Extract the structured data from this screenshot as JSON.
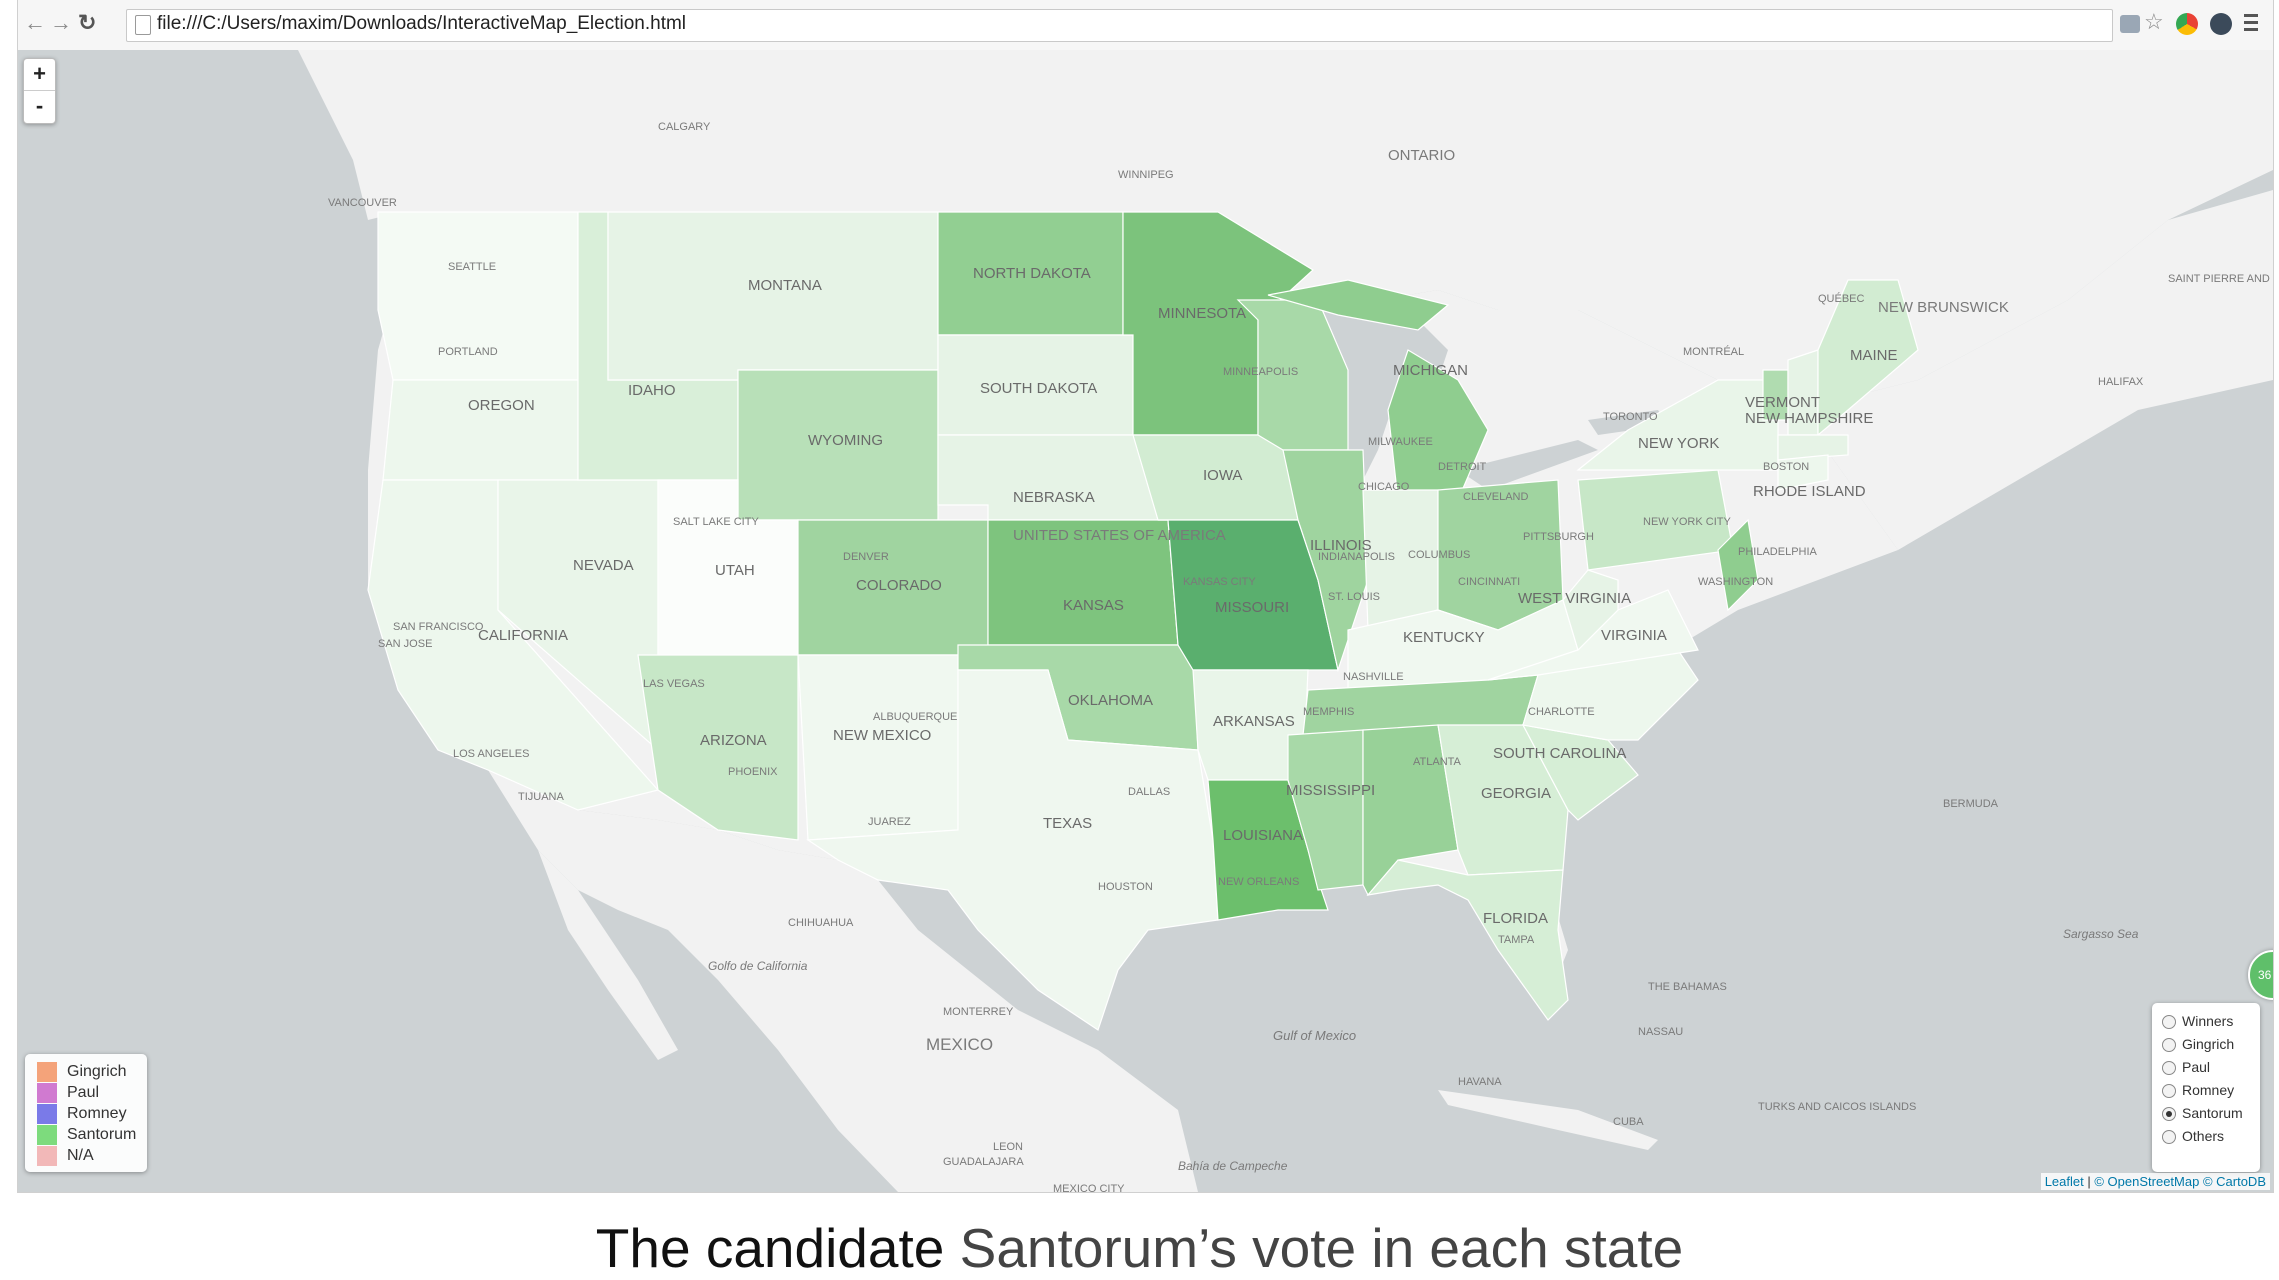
{
  "browser": {
    "url": "file:///C:/Users/maxim/Downloads/InteractiveMap_Election.html"
  },
  "map": {
    "zoom_in": "+",
    "zoom_out": "-",
    "place_labels": {
      "calgary": "CALGARY",
      "winnipeg": "WINNIPEG",
      "ontario": "ONTARIO",
      "vancouver": "VANCOUVER",
      "seattle": "SEATTLE",
      "portland": "PORTLAND",
      "quebec": "QUÉBEC",
      "new_brunswick": "NEW BRUNSWICK",
      "montreal": "MONTRÉAL",
      "halifax": "HALIFAX",
      "saint_pierre": "SAINT PIERRE AND MIQUELON",
      "toronto": "TORONTO",
      "minneapolis": "MINNEAPOLIS",
      "milwaukee": "MILWAUKEE",
      "chicago": "CHICAGO",
      "detroit": "DETROIT",
      "cleveland": "CLEVELAND",
      "pittsburgh": "PITTSBURGH",
      "columbus": "COLUMBUS",
      "cincinnati": "CINCINNATI",
      "indianapolis": "INDIANAPOLIS",
      "st_louis": "ST. LOUIS",
      "kansas_city": "KANSAS CITY",
      "denver": "DENVER",
      "salt_lake_city": "SALT LAKE CITY",
      "united_states": "UNITED STATES OF AMERICA",
      "san_francisco": "SAN FRANCISCO",
      "san_jose": "SAN JOSE",
      "los_angeles": "LOS ANGELES",
      "las_vegas": "LAS VEGAS",
      "phoenix": "PHOENIX",
      "tijuana": "TIJUANA",
      "albuquerque": "ALBUQUERQUE",
      "juarez": "JUAREZ",
      "dallas": "DALLAS",
      "houston": "HOUSTON",
      "new_orleans": "NEW ORLEANS",
      "memphis": "MEMPHIS",
      "nashville": "NASHVILLE",
      "atlanta": "ATLANTA",
      "charlotte": "CHARLOTTE",
      "washington": "WASHINGTON",
      "philadelphia": "PHILADELPHIA",
      "new_york_city": "NEW YORK CITY",
      "boston": "BOSTON",
      "tampa": "TAMPA",
      "chihuahua": "CHIHUAHUA",
      "monterrey": "MONTERREY",
      "mexico": "MEXICO",
      "leon": "LEON",
      "guadalajara": "GUADALAJARA",
      "mexico_city": "MEXICO CITY",
      "golfo_california": "Golfo de California",
      "gulf_mexico": "Gulf of Mexico",
      "bahia_campeche": "Bahía de Campeche",
      "havana": "HAVANA",
      "cuba": "CUBA",
      "nassau": "NASSAU",
      "the_bahamas": "THE BAHAMAS",
      "turks_caicos": "TURKS AND CAICOS ISLANDS",
      "bermuda": "BERMUDA",
      "sargasso": "Sargasso Sea"
    },
    "states": {
      "washington": "",
      "oregon": "OREGON",
      "california": "CALIFORNIA",
      "nevada": "NEVADA",
      "idaho": "IDAHO",
      "montana": "MONTANA",
      "wyoming": "WYOMING",
      "utah": "UTAH",
      "arizona": "ARIZONA",
      "colorado": "COLORADO",
      "new_mexico": "NEW MEXICO",
      "north_dakota": "NORTH DAKOTA",
      "south_dakota": "SOUTH DAKOTA",
      "nebraska": "NEBRASKA",
      "kansas": "KANSAS",
      "oklahoma": "OKLAHOMA",
      "texas": "TEXAS",
      "minnesota": "MINNESOTA",
      "iowa": "IOWA",
      "missouri": "MISSOURI",
      "arkansas": "ARKANSAS",
      "louisiana": "LOUISIANA",
      "wisconsin": "",
      "illinois": "ILLINOIS",
      "michigan": "MICHIGAN",
      "indiana": "",
      "ohio": "",
      "kentucky": "KENTUCKY",
      "tennessee": "",
      "mississippi": "MISSISSIPPI",
      "alabama": "",
      "georgia": "GEORGIA",
      "florida": "FLORIDA",
      "south_carolina": "SOUTH CAROLINA",
      "north_carolina": "",
      "virginia": "VIRGINIA",
      "west_virginia": "WEST VIRGINIA",
      "pennsylvania": "",
      "new_york": "NEW YORK",
      "vermont": "VERMONT",
      "new_hampshire": "NEW HAMPSHIRE",
      "maine": "MAINE",
      "rhode_island": "RHODE ISLAND"
    },
    "legend": [
      {
        "label": "Gingrich",
        "color": "#f4a37a"
      },
      {
        "label": "Paul",
        "color": "#d07ad0"
      },
      {
        "label": "Romney",
        "color": "#7a7ae8"
      },
      {
        "label": "Santorum",
        "color": "#7ddb7d"
      },
      {
        "label": "N/A",
        "color": "#f2b8b8"
      }
    ],
    "layers": [
      {
        "label": "Winners",
        "selected": false
      },
      {
        "label": "Gingrich",
        "selected": false
      },
      {
        "label": "Paul",
        "selected": false
      },
      {
        "label": "Romney",
        "selected": false
      },
      {
        "label": "Santorum",
        "selected": true
      },
      {
        "label": "Others",
        "selected": false
      }
    ],
    "attribution": {
      "leaflet": "Leaflet",
      "osm": "© OpenStreetMap",
      "carto": "© CartoDB"
    },
    "cluster_count": "36",
    "colors": {
      "water": "#cdd2d4",
      "land": "#f2f2f2",
      "choropleth": [
        "#f4faf4",
        "#e9f5e9",
        "#d6eed6",
        "#c0e4c0",
        "#a8d9a8",
        "#8ecd8e",
        "#73c073",
        "#5aaf6e"
      ]
    }
  },
  "caption": {
    "prefix": "The candidate ",
    "name": "Santorum’s",
    "suffix": " vote in each state"
  }
}
